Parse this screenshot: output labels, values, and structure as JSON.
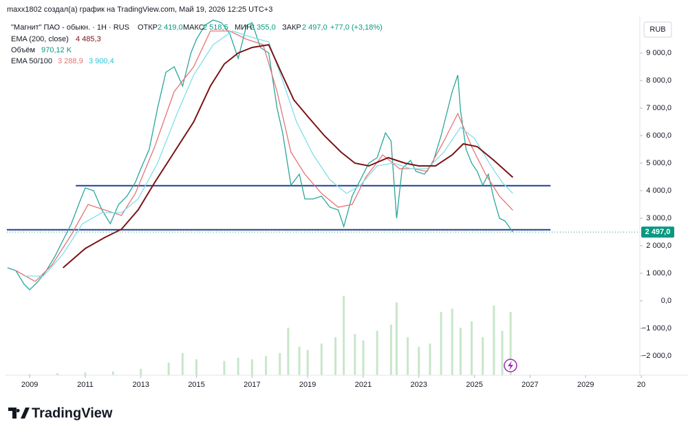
{
  "header": "maxx1802 создал(а) график на TradingView.com, Май 19, 2026 12:25 UTC+3",
  "legend": {
    "symbol": "\"Магнит\" ПАО - обыкн. · 1Н · RUS",
    "open_label": "ОТКР",
    "open": "2 419,0",
    "high_label": "МАКС",
    "high": "2 518,5",
    "low_label": "МИН",
    "low": "2 355,0",
    "close_label": "ЗАКР",
    "close": "2 497,0",
    "change": "+77,0 (+3,18%)",
    "ema200_label": "EMA (200, close)",
    "ema200": "4 485,3",
    "volume_label": "Объём",
    "volume": "970,12 K",
    "ema50_100_label": "EMA 50/100",
    "ema50": "3 288,9",
    "ema100": "3 900,4"
  },
  "currency": "RUB",
  "logo": "TradingView",
  "chart_data": {
    "type": "line",
    "xlim": [
      2008.18,
      2030.95
    ],
    "xticks": [
      2009,
      2011,
      2013,
      2015,
      2017,
      2019,
      2021,
      2023,
      2025,
      2027,
      2029,
      {
        "value": 2031,
        "label": "20"
      }
    ],
    "ylim": [
      -2700,
      10225
    ],
    "yticks": [
      {
        "value": -2000,
        "label": "−2 000,0"
      },
      {
        "value": -1000,
        "label": "−1 000,0"
      },
      {
        "value": 0,
        "label": "0,0"
      },
      {
        "value": 1000,
        "label": "1 000,0"
      },
      {
        "value": 2000,
        "label": "2 000,0"
      },
      {
        "value": 3000,
        "label": "3 000,0"
      },
      {
        "value": 4000,
        "label": "4 000,0"
      },
      {
        "value": 5000,
        "label": "5 000,0"
      },
      {
        "value": 6000,
        "label": "6 000,0"
      },
      {
        "value": 7000,
        "label": "7 000,0"
      },
      {
        "value": 8000,
        "label": "8 000,0"
      },
      {
        "value": 9000,
        "label": "9 000,0"
      }
    ],
    "last": {
      "value": 2497,
      "label": "2 497,0"
    },
    "series": [
      {
        "name": "Price",
        "color": "#26a69a",
        "x": [
          2008.2,
          2008.5,
          2008.8,
          2009.0,
          2009.3,
          2009.6,
          2009.9,
          2010.2,
          2010.5,
          2010.8,
          2011.0,
          2011.3,
          2011.6,
          2011.9,
          2012.2,
          2012.5,
          2012.8,
          2013.0,
          2013.3,
          2013.6,
          2013.9,
          2014.2,
          2014.5,
          2014.8,
          2015.0,
          2015.3,
          2015.6,
          2015.9,
          2016.2,
          2016.5,
          2016.8,
          2017.0,
          2017.3,
          2017.6,
          2017.9,
          2018.1,
          2018.4,
          2018.7,
          2018.9,
          2019.2,
          2019.5,
          2019.8,
          2020.1,
          2020.3,
          2020.6,
          2020.9,
          2021.2,
          2021.5,
          2021.8,
          2022.0,
          2022.2,
          2022.4,
          2022.7,
          2022.9,
          2023.2,
          2023.5,
          2023.8,
          2024.0,
          2024.2,
          2024.4,
          2024.5,
          2024.7,
          2024.9,
          2025.1,
          2025.3,
          2025.5,
          2025.7,
          2025.9,
          2026.1,
          2026.38
        ],
        "values": [
          1200,
          1100,
          600,
          400,
          700,
          1100,
          1600,
          2200,
          2800,
          3600,
          4100,
          4000,
          3300,
          2800,
          3500,
          3800,
          4300,
          4800,
          5500,
          7000,
          8300,
          8500,
          7800,
          9000,
          9500,
          10000,
          10200,
          10100,
          9700,
          8800,
          10000,
          10100,
          9200,
          9000,
          7000,
          6100,
          4200,
          4600,
          3700,
          3700,
          3800,
          3400,
          3300,
          2700,
          3800,
          4400,
          5000,
          5200,
          6100,
          5800,
          3000,
          4800,
          5100,
          4700,
          4600,
          5000,
          6000,
          6800,
          7600,
          8200,
          6900,
          5500,
          5000,
          4700,
          4200,
          4600,
          3700,
          3000,
          2900,
          2497
        ]
      },
      {
        "name": "EMA 50",
        "color": "#e57373",
        "x": [
          2008.5,
          2009.2,
          2009.8,
          2010.5,
          2011.1,
          2011.7,
          2012.3,
          2012.8,
          2013.5,
          2014.2,
          2014.9,
          2015.5,
          2016.2,
          2016.8,
          2017.4,
          2017.9,
          2018.4,
          2018.9,
          2019.5,
          2020.1,
          2020.6,
          2021.1,
          2021.7,
          2022.3,
          2022.8,
          2023.3,
          2023.9,
          2024.4,
          2024.9,
          2025.4,
          2025.9,
          2026.38
        ],
        "values": [
          1100,
          700,
          1300,
          2400,
          3500,
          3300,
          3100,
          3900,
          5600,
          7600,
          8500,
          9800,
          9800,
          9500,
          9300,
          7600,
          5400,
          4600,
          3900,
          3400,
          3500,
          4500,
          5300,
          4800,
          4800,
          4700,
          5800,
          6800,
          5600,
          4600,
          3800,
          3289
        ]
      },
      {
        "name": "EMA 100",
        "color": "#80deea",
        "x": [
          2008.8,
          2009.5,
          2010.2,
          2010.9,
          2011.6,
          2012.3,
          2012.9,
          2013.6,
          2014.3,
          2014.9,
          2015.6,
          2016.3,
          2016.9,
          2017.6,
          2018.1,
          2018.6,
          2019.2,
          2019.8,
          2020.4,
          2020.9,
          2021.5,
          2022.1,
          2022.7,
          2023.3,
          2023.9,
          2024.5,
          2025.0,
          2025.6,
          2026.0,
          2026.38
        ],
        "values": [
          900,
          900,
          1700,
          2800,
          3200,
          3200,
          3700,
          5000,
          6800,
          8200,
          9300,
          9800,
          9600,
          9400,
          8000,
          6500,
          5300,
          4400,
          3900,
          4200,
          4900,
          5000,
          4800,
          4800,
          5400,
          6300,
          5900,
          4900,
          4300,
          3900
        ]
      },
      {
        "name": "EMA 200",
        "color": "#7b1113",
        "x": [
          2010.2,
          2011.0,
          2011.7,
          2012.3,
          2012.9,
          2013.5,
          2014.2,
          2014.9,
          2015.5,
          2016.0,
          2016.5,
          2017.0,
          2017.6,
          2018.0,
          2018.5,
          2019.0,
          2019.6,
          2020.2,
          2020.7,
          2021.2,
          2021.9,
          2022.5,
          2023.0,
          2023.6,
          2024.2,
          2024.6,
          2025.1,
          2025.7,
          2026.38
        ],
        "values": [
          1200,
          1900,
          2300,
          2600,
          3300,
          4300,
          5400,
          6500,
          7800,
          8600,
          9000,
          9200,
          9300,
          8400,
          7300,
          6700,
          6000,
          5400,
          5000,
          4900,
          5200,
          5000,
          4900,
          4900,
          5300,
          5700,
          5600,
          5100,
          4485
        ]
      }
    ],
    "hlines": [
      {
        "value": 4180,
        "color": "#1e3f8f",
        "x": [
          2010.66,
          2027.74
        ]
      },
      {
        "value": 2580,
        "color": "#1e3f8f",
        "x": [
          2008.18,
          2027.74
        ]
      }
    ],
    "volume": {
      "color": "#c8e6c9",
      "x": [
        2009,
        2010,
        2011,
        2012,
        2013,
        2014,
        2014.5,
        2015,
        2016,
        2016.5,
        2017,
        2017.5,
        2018,
        2018.3,
        2018.7,
        2019,
        2019.5,
        2020,
        2020.3,
        2020.7,
        2021,
        2021.5,
        2022,
        2022.2,
        2022.6,
        2023,
        2023.4,
        2023.8,
        2024.2,
        2024.5,
        2024.9,
        2025.3,
        2025.7,
        2026,
        2026.3
      ],
      "values": [
        30,
        60,
        90,
        120,
        200,
        400,
        700,
        500,
        450,
        550,
        500,
        600,
        700,
        1500,
        900,
        800,
        1000,
        1200,
        2500,
        1300,
        1100,
        1400,
        1600,
        2300,
        1200,
        900,
        1000,
        2000,
        2100,
        1500,
        1700,
        1200,
        2200,
        1400,
        2000
      ]
    }
  }
}
